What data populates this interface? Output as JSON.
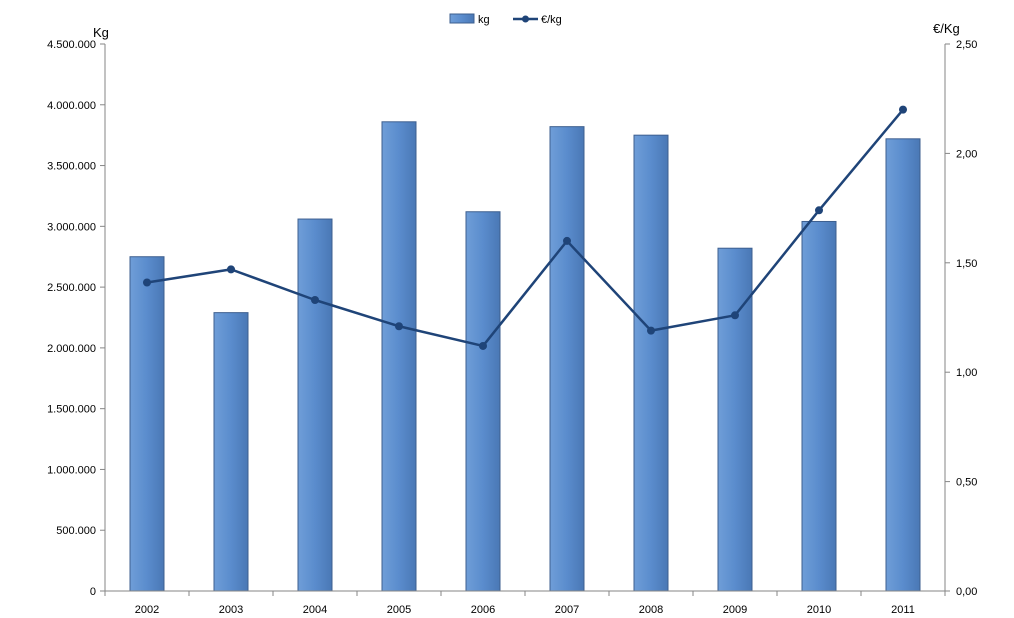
{
  "chart_data": {
    "type": "bar",
    "categories": [
      "2002",
      "2003",
      "2004",
      "2005",
      "2006",
      "2007",
      "2008",
      "2009",
      "2010",
      "2011"
    ],
    "series": [
      {
        "name": "kg",
        "type": "bar",
        "axis": "left",
        "values": [
          2750000,
          2290000,
          3060000,
          3860000,
          3120000,
          3820000,
          3750000,
          2820000,
          3040000,
          3720000
        ]
      },
      {
        "name": "€/kg",
        "type": "line",
        "axis": "right",
        "values": [
          1.41,
          1.47,
          1.33,
          1.21,
          1.12,
          1.6,
          1.19,
          1.26,
          1.74,
          2.2
        ]
      }
    ],
    "ylabel_left": "Kg",
    "ylabel_right": "€/Kg",
    "ylim_left": [
      0,
      4500000
    ],
    "ylim_right": [
      0,
      2.5
    ],
    "yticks_left": [
      "0",
      "500.000",
      "1.000.000",
      "1.500.000",
      "2.000.000",
      "2.500.000",
      "3.000.000",
      "3.500.000",
      "4.000.000",
      "4.500.000"
    ],
    "yticks_right": [
      "0,00",
      "0,50",
      "1,00",
      "1,50",
      "2,00",
      "2,50"
    ],
    "legend_position": "top-center",
    "grid": false,
    "colors": {
      "bar": "#5a8ccd",
      "bar_edge": "#3d5f8f",
      "line": "#1f4478"
    }
  }
}
